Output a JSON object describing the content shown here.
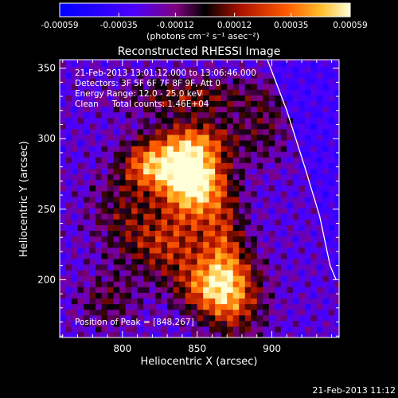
{
  "chart_data": {
    "type": "heatmap",
    "title": "Reconstructed RHESSI Image",
    "xlabel": "Heliocentric X (arcsec)",
    "ylabel": "Heliocentric Y (arcsec)",
    "xlim": [
      758,
      945
    ],
    "ylim": [
      159,
      356
    ],
    "x_ticks": [
      800,
      850,
      900
    ],
    "y_ticks": [
      200,
      250,
      300,
      350
    ],
    "colorbar": {
      "min": -0.00059,
      "max": 0.00059,
      "ticks": [
        -0.00059,
        -0.00035,
        -0.00012,
        0.00012,
        0.00035,
        0.00059
      ],
      "tick_labels": [
        "-0.00059",
        "-0.00035",
        "-0.00012",
        "0.00012",
        "0.00035",
        "0.00059"
      ],
      "unit_label": "(photons cm⁻² s⁻¹ asec⁻²)"
    },
    "annotations": [
      "21-Feb-2013 13:01:12.000 to 13:06:46.000",
      "Detectors: 3F 5F 6F 7F 8F 9F, Att 0",
      "Energy Range: 12.0 - 25.0 keV",
      "Clean     Total counts: 1.46E+04"
    ],
    "peak_label": "Position of Peak = [848,267]",
    "peak": [
      848,
      267
    ],
    "sources": [
      {
        "x": 848,
        "y": 267,
        "amp": 1.0,
        "sx": 14,
        "sy": 18
      },
      {
        "x": 838,
        "y": 280,
        "amp": 0.75,
        "sx": 16,
        "sy": 14
      },
      {
        "x": 815,
        "y": 282,
        "amp": 0.6,
        "sx": 12,
        "sy": 12
      },
      {
        "x": 850,
        "y": 300,
        "amp": 0.55,
        "sx": 20,
        "sy": 10
      },
      {
        "x": 845,
        "y": 330,
        "amp": 0.5,
        "sx": 30,
        "sy": 10
      },
      {
        "x": 830,
        "y": 225,
        "amp": 0.6,
        "sx": 20,
        "sy": 18
      },
      {
        "x": 855,
        "y": 195,
        "amp": 0.65,
        "sx": 14,
        "sy": 14
      },
      {
        "x": 875,
        "y": 190,
        "amp": 0.7,
        "sx": 14,
        "sy": 22
      },
      {
        "x": 868,
        "y": 230,
        "amp": 0.45,
        "sx": 10,
        "sy": 30
      },
      {
        "x": 800,
        "y": 250,
        "amp": 0.35,
        "sx": 16,
        "sy": 20
      },
      {
        "x": 790,
        "y": 185,
        "amp": 0.35,
        "sx": 14,
        "sy": 14
      },
      {
        "x": 895,
        "y": 310,
        "amp": 0.3,
        "sx": 12,
        "sy": 20
      }
    ],
    "limb_curve": [
      [
        897,
        356
      ],
      [
        910,
        320
      ],
      [
        922,
        280
      ],
      [
        932,
        245
      ],
      [
        939,
        210
      ],
      [
        943,
        200
      ]
    ]
  },
  "timestamp": "21-Feb-2013 11:12"
}
